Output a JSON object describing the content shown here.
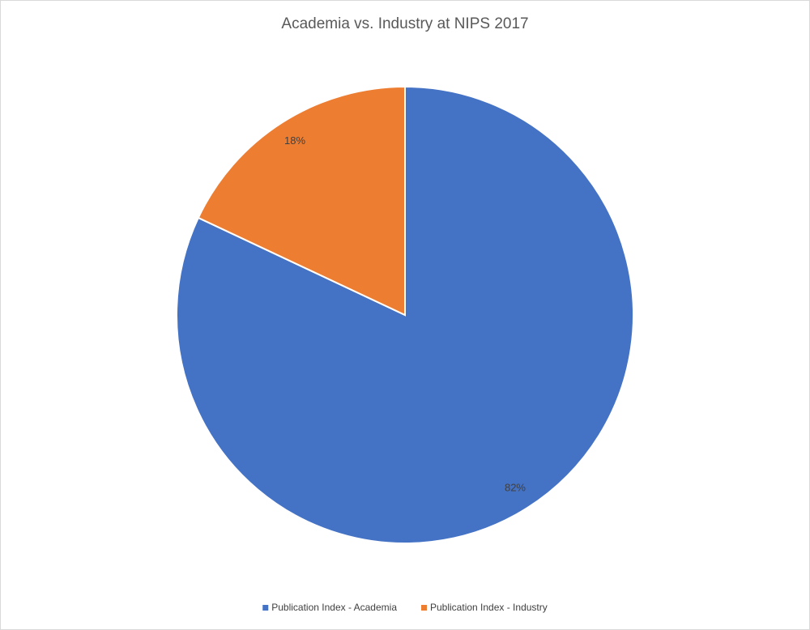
{
  "chart_data": {
    "type": "pie",
    "title": "Academia vs. Industry at NIPS 2017",
    "categories": [
      "Publication Index - Academia",
      "Publication Index - Industry"
    ],
    "values": [
      82,
      18
    ],
    "value_labels": [
      "82%",
      "18%"
    ],
    "colors": [
      "#4472c4",
      "#ed7d31"
    ],
    "legend": "bottom"
  }
}
